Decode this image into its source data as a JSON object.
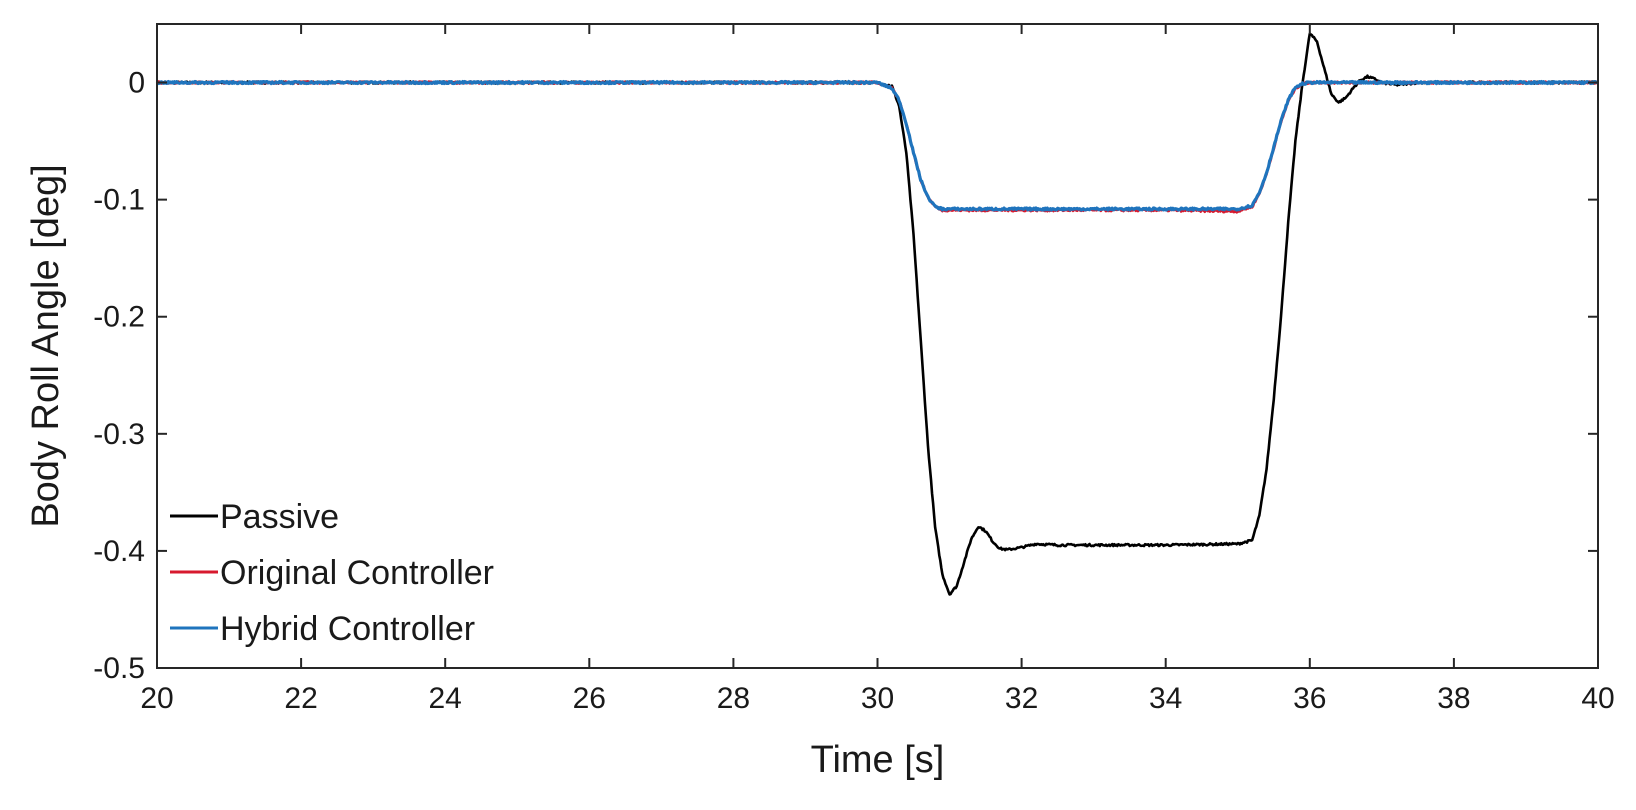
{
  "chart_data": {
    "type": "line",
    "title": "",
    "xlabel": "Time [s]",
    "ylabel": "Body Roll Angle [deg]",
    "xlim": [
      20,
      40
    ],
    "ylim": [
      -0.5,
      0.05
    ],
    "xticks": [
      20,
      22,
      24,
      26,
      28,
      30,
      32,
      34,
      36,
      38,
      40
    ],
    "yticks": [
      0,
      -0.1,
      -0.2,
      -0.3,
      -0.4,
      -0.5
    ],
    "xtick_labels": [
      "20",
      "22",
      "24",
      "26",
      "28",
      "30",
      "32",
      "34",
      "36",
      "38",
      "40"
    ],
    "ytick_labels": [
      "0",
      "-0.1",
      "-0.2",
      "-0.3",
      "-0.4",
      "-0.5"
    ],
    "grid": false,
    "legend_position": "bottom-left",
    "series": [
      {
        "name": "Passive",
        "color": "#000000",
        "x": [
          20,
          30.0,
          30.2,
          30.3,
          30.4,
          30.5,
          30.6,
          30.7,
          30.8,
          30.9,
          31.0,
          31.1,
          31.2,
          31.3,
          31.4,
          31.5,
          31.6,
          31.7,
          31.8,
          32.0,
          32.2,
          32.5,
          33.0,
          34.0,
          35.0,
          35.2,
          35.3,
          35.4,
          35.5,
          35.6,
          35.7,
          35.8,
          35.9,
          36.0,
          36.1,
          36.2,
          36.3,
          36.4,
          36.5,
          36.6,
          36.7,
          36.8,
          36.9,
          37.0,
          37.2,
          37.5,
          40
        ],
        "y": [
          0,
          0,
          -0.003,
          -0.02,
          -0.06,
          -0.13,
          -0.22,
          -0.31,
          -0.38,
          -0.42,
          -0.437,
          -0.43,
          -0.41,
          -0.39,
          -0.379,
          -0.383,
          -0.392,
          -0.398,
          -0.399,
          -0.397,
          -0.394,
          -0.395,
          -0.395,
          -0.395,
          -0.394,
          -0.391,
          -0.37,
          -0.33,
          -0.27,
          -0.2,
          -0.12,
          -0.05,
          0.0,
          0.042,
          0.035,
          0.012,
          -0.01,
          -0.017,
          -0.013,
          -0.005,
          0.002,
          0.005,
          0.003,
          0.0,
          -0.002,
          0.0,
          0
        ]
      },
      {
        "name": "Original Controller",
        "color": "#d7192e",
        "x": [
          20,
          30.0,
          30.2,
          30.3,
          30.4,
          30.5,
          30.6,
          30.7,
          30.8,
          30.9,
          31.0,
          32.0,
          33.0,
          34.0,
          35.0,
          35.2,
          35.3,
          35.4,
          35.5,
          35.6,
          35.7,
          35.8,
          35.9,
          36.0,
          36.2,
          40
        ],
        "y": [
          0,
          0,
          -0.005,
          -0.015,
          -0.035,
          -0.06,
          -0.083,
          -0.098,
          -0.106,
          -0.109,
          -0.109,
          -0.109,
          -0.109,
          -0.109,
          -0.11,
          -0.106,
          -0.095,
          -0.078,
          -0.056,
          -0.034,
          -0.016,
          -0.005,
          -0.001,
          0.0,
          0.0,
          0
        ]
      },
      {
        "name": "Hybrid Controller",
        "color": "#1f74bd",
        "x": [
          20,
          30.0,
          30.2,
          30.3,
          30.4,
          30.5,
          30.6,
          30.7,
          30.8,
          30.9,
          31.0,
          32.0,
          33.0,
          34.0,
          35.0,
          35.2,
          35.3,
          35.4,
          35.5,
          35.6,
          35.7,
          35.8,
          35.9,
          36.0,
          36.2,
          40
        ],
        "y": [
          0,
          0,
          -0.005,
          -0.015,
          -0.035,
          -0.06,
          -0.083,
          -0.098,
          -0.106,
          -0.108,
          -0.108,
          -0.108,
          -0.108,
          -0.108,
          -0.108,
          -0.105,
          -0.094,
          -0.077,
          -0.055,
          -0.033,
          -0.015,
          -0.004,
          -0.001,
          0.0,
          0.0,
          0
        ]
      }
    ]
  }
}
